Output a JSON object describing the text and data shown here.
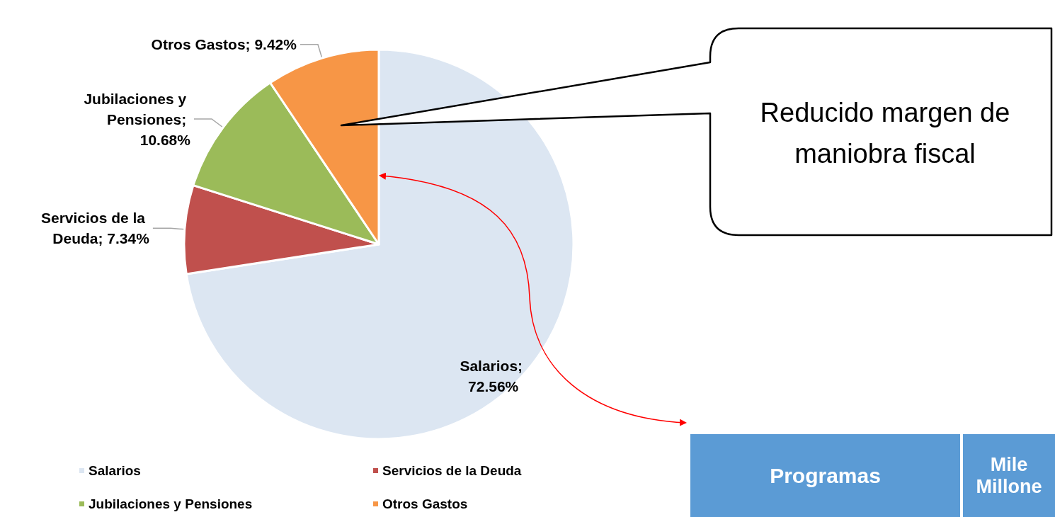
{
  "chart_data": {
    "type": "pie",
    "categories": [
      "Salarios",
      "Servicios de la Deuda",
      "Jubilaciones y Pensiones",
      "Otros Gastos"
    ],
    "values": [
      72.56,
      7.34,
      10.68,
      9.42
    ],
    "colors": [
      "#dce6f2",
      "#c0504d",
      "#9bbb59",
      "#f79646"
    ],
    "value_labels": [
      "Salarios; 72.56%",
      "Servicios de la Deuda; 7.34%",
      "Jubilaciones y Pensiones; 10.68%",
      "Otros Gastos; 9.42%"
    ],
    "legend": "bottom",
    "annotations": [
      "Reducido margen de maniobra fiscal",
      "Programas",
      "Mile Millone"
    ]
  }
}
